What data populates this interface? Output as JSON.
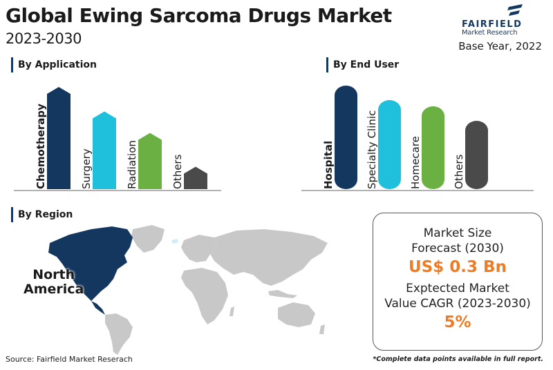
{
  "header": {
    "title": "Global Ewing Sarcoma Drugs Market",
    "years": "2023-2030",
    "base_year": "Base Year, 2022"
  },
  "logo": {
    "name": "FAIRFIELD",
    "sub": "Market Research",
    "color": "#13375f"
  },
  "colors": {
    "blue": "#13375f",
    "teal": "#1ec0dc",
    "green": "#6bb043",
    "gray": "#4a4a4a",
    "orange": "#ef7c22"
  },
  "chart_data": [
    {
      "type": "bar",
      "title": "By Application",
      "categories": [
        "Chemotherapy",
        "Surgery",
        "Radiation",
        "Others"
      ],
      "values": [
        100,
        76,
        55,
        22
      ],
      "value_unit": "relative (unlabeled)",
      "colors": [
        "#13375f",
        "#1ec0dc",
        "#6bb043",
        "#4a4a4a"
      ],
      "highlight": "Chemotherapy",
      "bar_shape": "pointed top"
    },
    {
      "type": "bar",
      "title": "By End User",
      "categories": [
        "Hospital",
        "Specialty Clinic",
        "Homecare",
        "Others"
      ],
      "values": [
        100,
        86,
        80,
        66
      ],
      "value_unit": "relative (unlabeled)",
      "colors": [
        "#13375f",
        "#1ec0dc",
        "#6bb043",
        "#4a4a4a"
      ],
      "highlight": "Hospital",
      "bar_shape": "rounded"
    }
  ],
  "region": {
    "heading": "By Region",
    "leading_region": "North America",
    "label_line1": "North",
    "label_line2": "America"
  },
  "stats": {
    "market_size_label_1": "Market Size",
    "market_size_label_2": "Forecast (2030)",
    "market_size_value": "US$ 0.3 Bn",
    "cagr_label_1": "Exptected Market",
    "cagr_label_2": "Value CAGR (2023-2030)",
    "cagr_value": "5%"
  },
  "footer": {
    "source": "Source: Fairfield Market Reserach",
    "note": "*Complete data points available in full report."
  }
}
